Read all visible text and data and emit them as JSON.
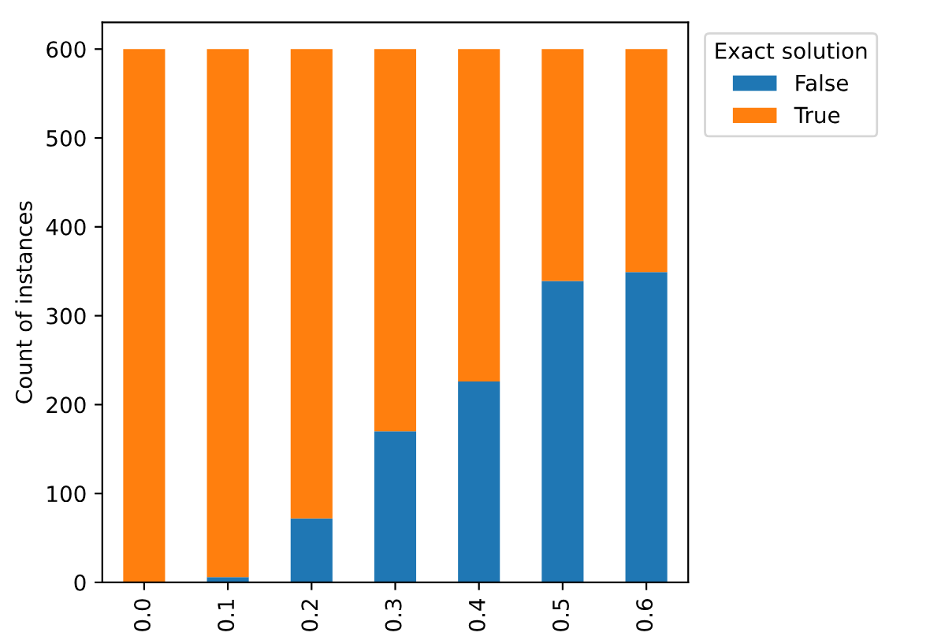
{
  "chart_data": {
    "type": "bar",
    "stacked": true,
    "ylabel": "Count of instances",
    "legend_title": "Exact solution",
    "legend": "right",
    "categories": [
      "0.0",
      "0.1",
      "0.2",
      "0.3",
      "0.4",
      "0.5",
      "0.6"
    ],
    "series": [
      {
        "name": "False",
        "color": "#1f77b4",
        "values": [
          0,
          6,
          72,
          170,
          226,
          339,
          349
        ]
      },
      {
        "name": "True",
        "color": "#ff7f0e",
        "values": [
          600,
          594,
          528,
          430,
          374,
          261,
          251
        ]
      }
    ],
    "ylim": [
      0,
      630
    ],
    "yticks": [
      0,
      100,
      200,
      300,
      400,
      500,
      600
    ],
    "grid": false
  }
}
